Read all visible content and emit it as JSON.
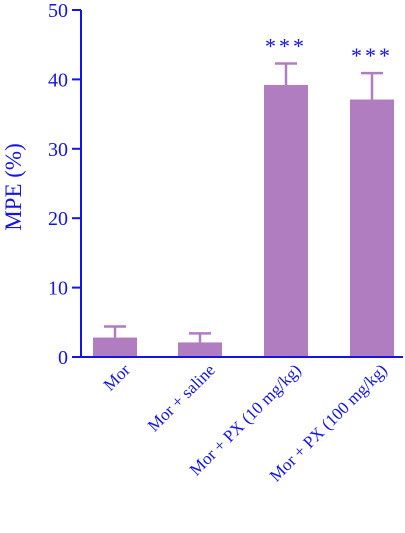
{
  "colors": {
    "axis": "#1414e6",
    "bar": "#b07dc0",
    "text": "#1414e6"
  },
  "chart_data": {
    "type": "bar",
    "title": "",
    "xlabel": "",
    "ylabel": "MPE (%)",
    "ylim": [
      0,
      50
    ],
    "yticks": [
      0,
      10,
      20,
      30,
      40,
      50
    ],
    "grid": false,
    "categories": [
      "Mor",
      "Mor + saline",
      "Mor + PX (10 mg/kg)",
      "Mor + PX (100 mg/kg)"
    ],
    "values": [
      2.8,
      2.1,
      39.2,
      37.1
    ],
    "errors": [
      1.6,
      1.3,
      3.1,
      3.8
    ],
    "annotations": [
      "",
      "",
      "***",
      "***"
    ]
  }
}
